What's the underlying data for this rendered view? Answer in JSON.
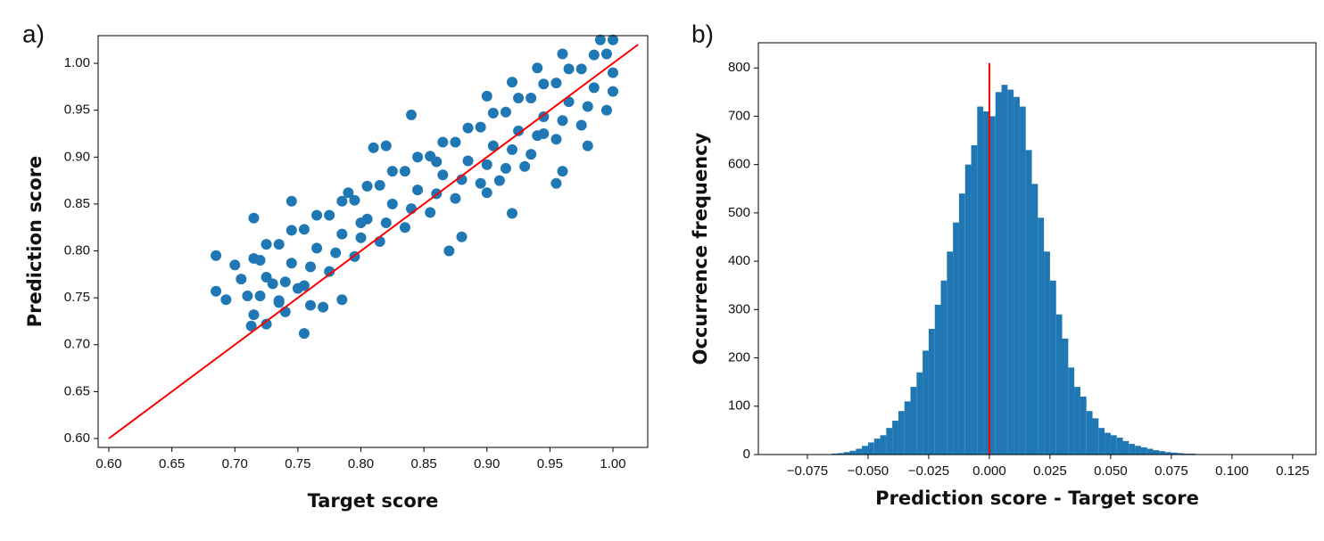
{
  "chart_data": [
    {
      "type": "scatter",
      "panel_label": "a)",
      "x_label": "Target score",
      "y_label": "Prediction score",
      "color": "#1f77b4",
      "x": [
        0.715,
        0.72,
        0.725,
        0.715,
        0.725,
        0.735,
        0.74,
        0.745,
        0.735,
        0.745,
        0.755,
        0.76,
        0.765,
        0.755,
        0.765,
        0.775,
        0.78,
        0.785,
        0.775,
        0.785,
        0.795,
        0.8,
        0.805,
        0.795,
        0.805,
        0.815,
        0.82,
        0.825,
        0.815,
        0.825,
        0.835,
        0.84,
        0.845,
        0.835,
        0.845,
        0.855,
        0.86,
        0.865,
        0.855,
        0.865,
        0.875,
        0.88,
        0.885,
        0.875,
        0.885,
        0.895,
        0.9,
        0.905,
        0.895,
        0.905,
        0.915,
        0.92,
        0.925,
        0.915,
        0.925,
        0.935,
        0.94,
        0.945,
        0.935,
        0.945,
        0.955,
        0.96,
        0.965,
        0.955,
        0.965,
        0.975,
        0.98,
        0.985,
        0.975,
        0.985,
        0.995,
        1.0,
        1.0,
        0.995,
        1.0,
        0.685,
        0.685,
        0.693,
        0.7,
        0.705,
        0.71,
        0.715,
        0.713,
        0.72,
        0.725,
        0.73,
        0.735,
        0.74,
        0.745,
        0.75,
        0.755,
        0.76,
        0.77,
        0.785,
        0.79,
        0.8,
        0.81,
        0.82,
        0.84,
        0.86,
        0.87,
        0.88,
        0.9,
        0.91,
        0.92,
        0.93,
        0.945,
        0.955,
        0.96,
        0.98,
        0.9,
        0.92,
        0.94,
        0.96,
        0.99
      ],
      "y": [
        0.732,
        0.752,
        0.772,
        0.792,
        0.807,
        0.747,
        0.767,
        0.787,
        0.807,
        0.822,
        0.763,
        0.783,
        0.803,
        0.823,
        0.838,
        0.778,
        0.798,
        0.818,
        0.838,
        0.853,
        0.794,
        0.814,
        0.834,
        0.854,
        0.869,
        0.81,
        0.83,
        0.85,
        0.87,
        0.885,
        0.825,
        0.845,
        0.865,
        0.885,
        0.9,
        0.841,
        0.861,
        0.881,
        0.901,
        0.916,
        0.856,
        0.876,
        0.896,
        0.916,
        0.931,
        0.872,
        0.892,
        0.912,
        0.932,
        0.947,
        0.888,
        0.908,
        0.928,
        0.948,
        0.963,
        0.903,
        0.923,
        0.943,
        0.963,
        0.978,
        0.919,
        0.939,
        0.959,
        0.979,
        0.994,
        0.934,
        0.954,
        0.974,
        0.994,
        1.009,
        0.95,
        0.97,
        0.99,
        1.01,
        1.025,
        0.795,
        0.757,
        0.748,
        0.785,
        0.77,
        0.752,
        0.835,
        0.72,
        0.79,
        0.722,
        0.765,
        0.745,
        0.735,
        0.853,
        0.76,
        0.712,
        0.742,
        0.74,
        0.748,
        0.862,
        0.83,
        0.91,
        0.912,
        0.945,
        0.895,
        0.8,
        0.815,
        0.862,
        0.875,
        0.84,
        0.89,
        0.925,
        0.872,
        0.885,
        0.912,
        0.965,
        0.98,
        0.995,
        1.01,
        1.025
      ],
      "reference_line": {
        "x": [
          0.6,
          1.02
        ],
        "y": [
          0.6,
          1.02
        ],
        "color": "#ff0000"
      },
      "xlim": [
        0.5915,
        1.0276
      ],
      "ylim": [
        0.5905,
        1.0295
      ],
      "xticks": [
        {
          "value": 0.6,
          "label": "0.60"
        },
        0.65,
        {
          "value": 0.7,
          "label": "0.70"
        },
        0.75,
        {
          "value": 0.8,
          "label": "0.80"
        },
        0.85,
        {
          "value": 0.9,
          "label": "0.90"
        },
        0.95,
        {
          "value": 1.0,
          "label": "1.00"
        }
      ],
      "yticks": [
        {
          "value": 0.6,
          "label": "0.60"
        },
        0.65,
        {
          "value": 0.7,
          "label": "0.70"
        },
        0.75,
        {
          "value": 0.8,
          "label": "0.80"
        },
        0.85,
        {
          "value": 0.9,
          "label": "0.90"
        },
        0.95,
        {
          "value": 1.0,
          "label": "1.00"
        }
      ]
    },
    {
      "type": "histogram",
      "panel_label": "b)",
      "x_label": "Prediction score - Target score",
      "y_label": "Occurrence frequency",
      "color": "#1f77b4",
      "bins": [
        -0.065,
        -0.0625,
        -0.06,
        -0.0575,
        -0.055,
        -0.0525,
        -0.05,
        -0.0475,
        -0.045,
        -0.0425,
        -0.04,
        -0.0375,
        -0.035,
        -0.0325,
        -0.03,
        -0.0275,
        -0.025,
        -0.0225,
        -0.02,
        -0.0175,
        -0.015,
        -0.0125,
        -0.01,
        -0.0075,
        -0.005,
        -0.0025,
        0,
        0.0025,
        0.005,
        0.0075,
        0.01,
        0.0125,
        0.015,
        0.0175,
        0.02,
        0.0225,
        0.025,
        0.0275,
        0.03,
        0.0325,
        0.035,
        0.0375,
        0.04,
        0.0425,
        0.045,
        0.0475,
        0.05,
        0.0525,
        0.055,
        0.0575,
        0.06,
        0.0625,
        0.065,
        0.0675,
        0.07,
        0.0725,
        0.075,
        0.0775,
        0.08,
        0.0825,
        0.085,
        0.0875,
        0.09,
        0.0925,
        0.095
      ],
      "values": [
        2,
        3,
        5,
        8,
        12,
        18,
        25,
        33,
        40,
        55,
        70,
        90,
        110,
        140,
        170,
        215,
        260,
        310,
        360,
        420,
        480,
        540,
        600,
        640,
        720,
        710,
        700,
        750,
        765,
        755,
        740,
        720,
        630,
        560,
        490,
        420,
        360,
        290,
        240,
        180,
        140,
        120,
        90,
        75,
        55,
        45,
        40,
        35,
        28,
        22,
        18,
        15,
        12,
        9,
        7,
        5,
        4,
        3,
        2,
        2,
        1,
        1,
        1,
        1
      ],
      "reference_line": {
        "x": [
          0,
          0
        ],
        "y": [
          0,
          810
        ],
        "color": "#ff0000"
      },
      "xlim": [
        -0.0952,
        0.1346
      ],
      "ylim": [
        0,
        852
      ],
      "xticks": [
        {
          "value": -0.075,
          "label": "−0.075"
        },
        {
          "value": -0.05,
          "label": "−0.050"
        },
        {
          "value": -0.025,
          "label": "−0.025"
        },
        {
          "value": 0,
          "label": "0.000"
        },
        0.025,
        {
          "value": 0.05,
          "label": "0.050"
        },
        0.075,
        {
          "value": 0.1,
          "label": "0.100"
        },
        0.125
      ],
      "yticks": [
        0,
        100,
        200,
        300,
        400,
        500,
        600,
        700,
        800
      ]
    }
  ]
}
